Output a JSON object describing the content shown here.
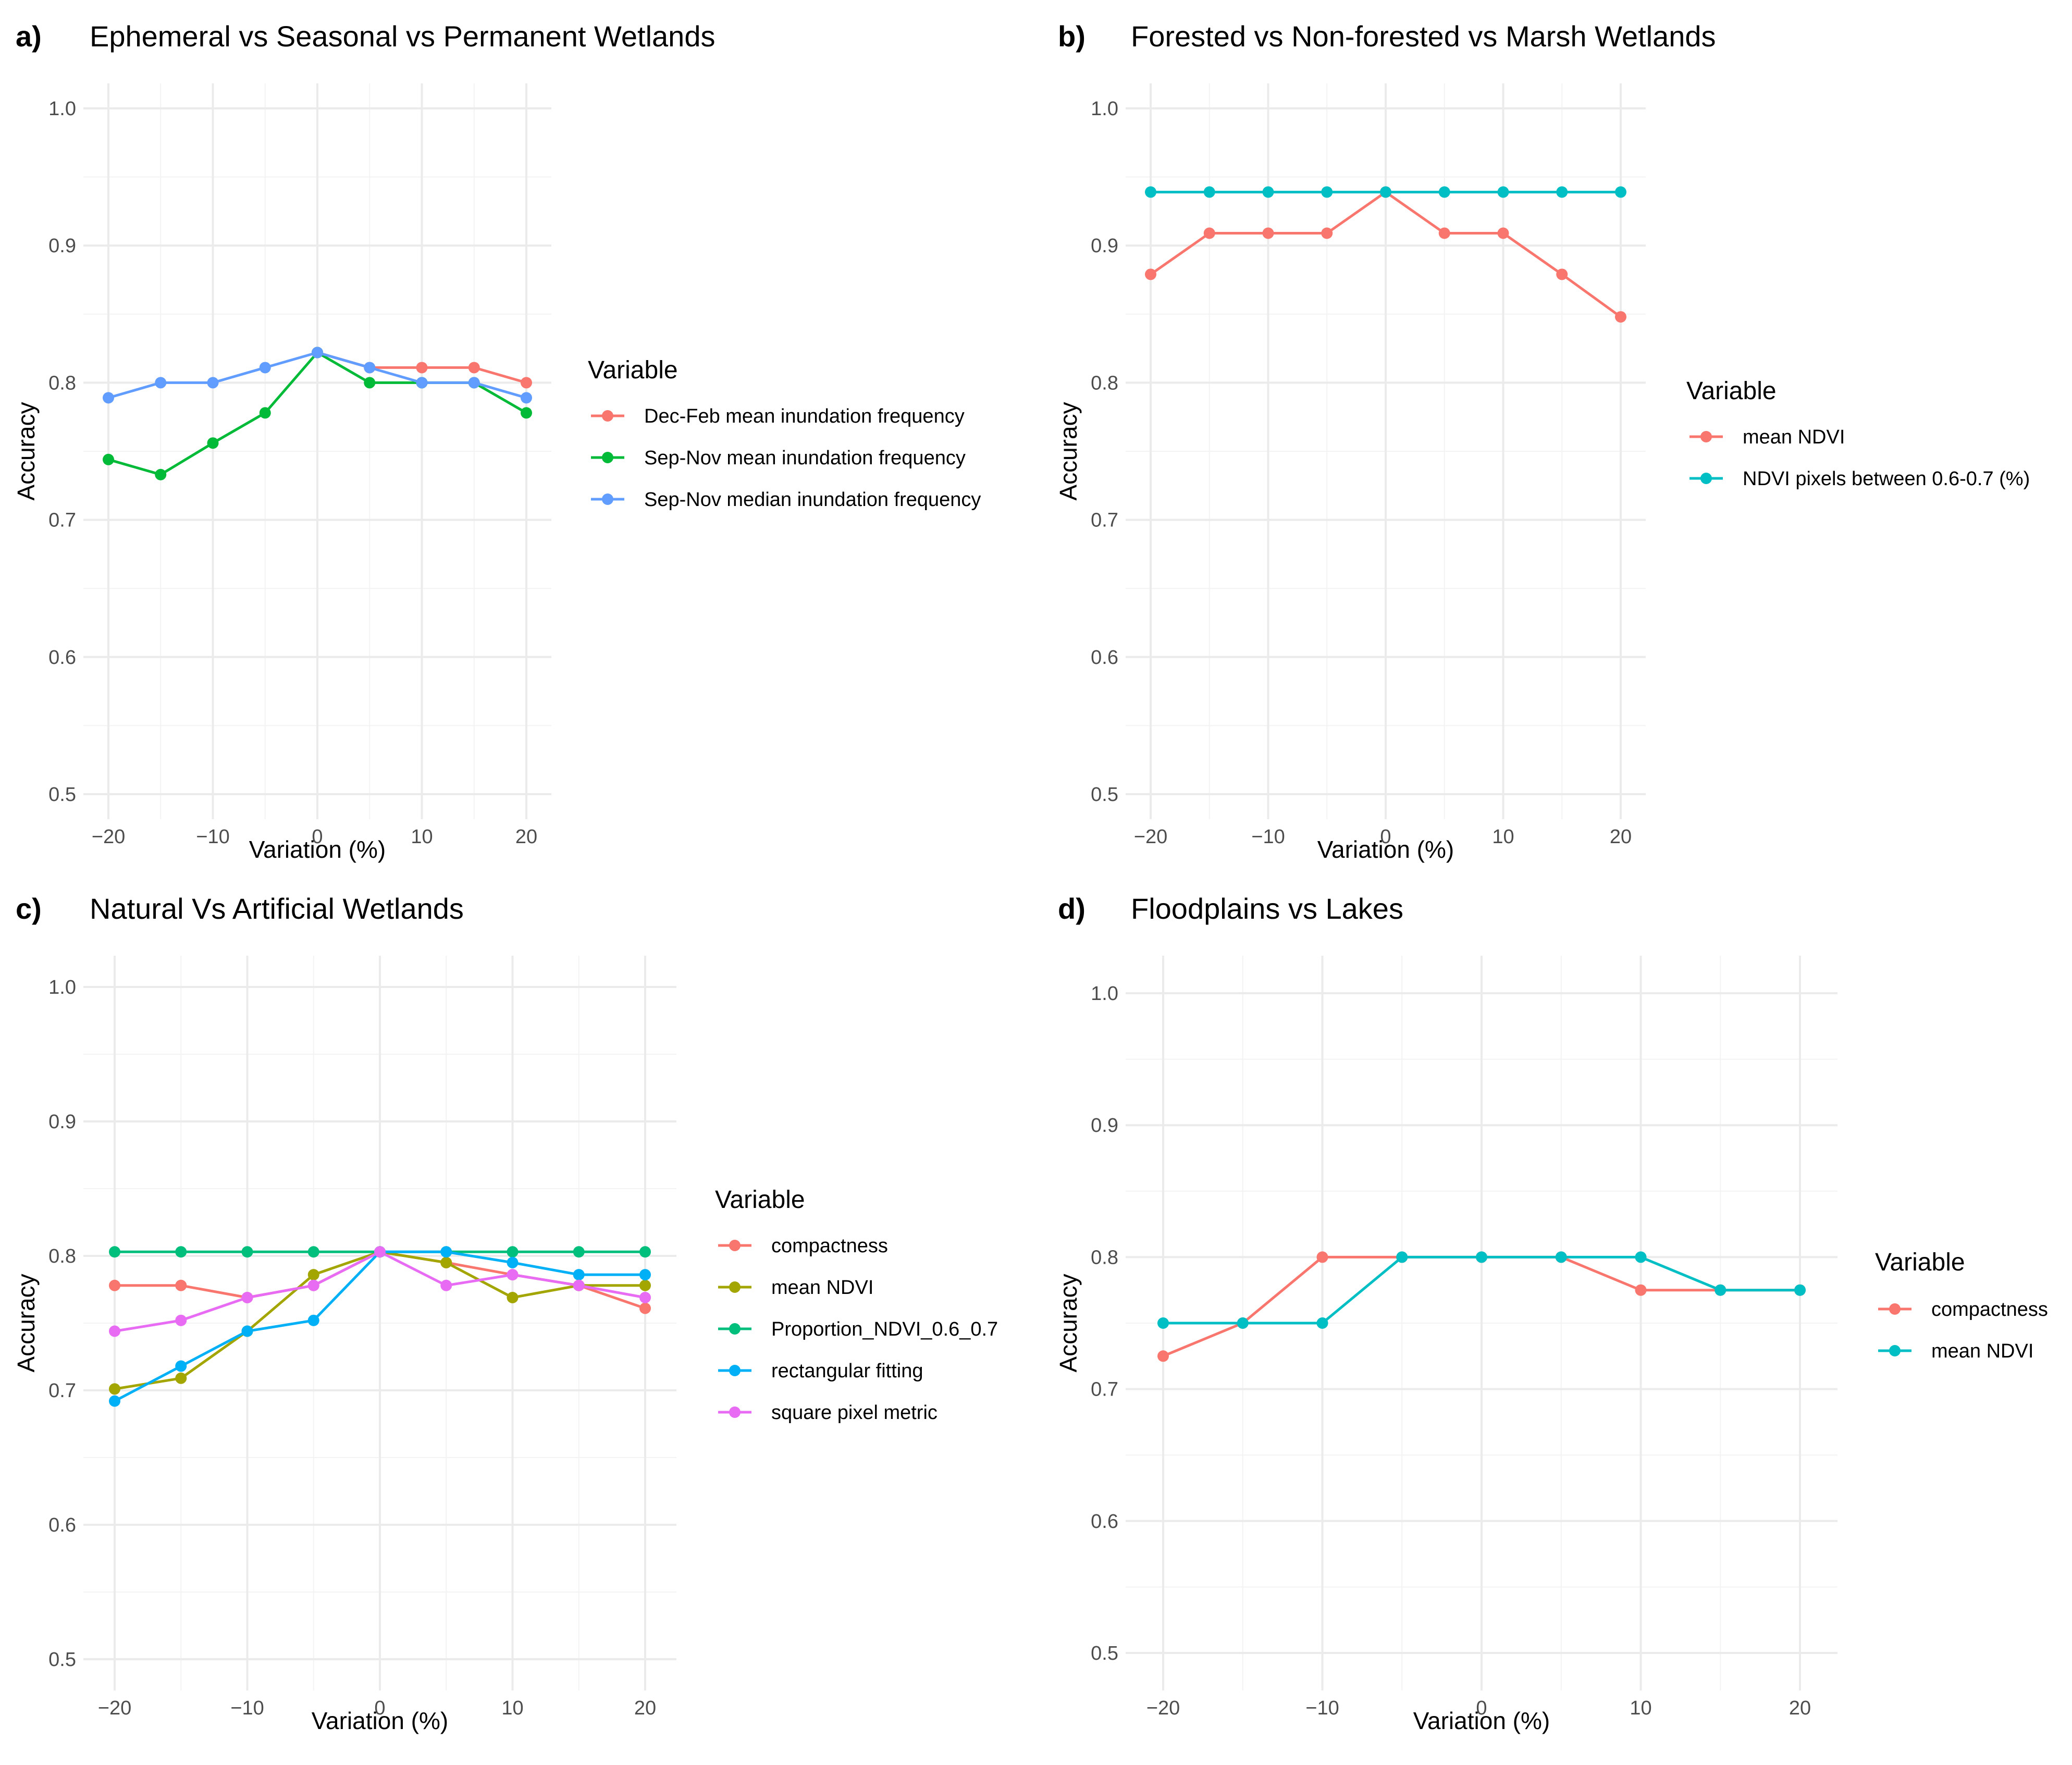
{
  "chart_data": [
    {
      "type": "line",
      "panel_label": "a)",
      "title": "Ephemeral vs Seasonal vs Permanent Wetlands",
      "xlabel": "Variation (%)",
      "ylabel": "Accuracy",
      "xlim": [
        -20,
        20
      ],
      "ylim": [
        0.5,
        1.0
      ],
      "x_ticks": [
        -20,
        -10,
        0,
        10,
        20
      ],
      "x_tick_labels": [
        "−20",
        "−10",
        "0",
        "10",
        "20"
      ],
      "y_ticks": [
        0.5,
        0.6,
        0.7,
        0.8,
        0.9,
        1.0
      ],
      "y_tick_labels": [
        "0.5",
        "0.6",
        "0.7",
        "0.8",
        "0.9",
        "1.0"
      ],
      "grid": true,
      "legend_title": "Variable",
      "legend_position": "right",
      "x": [
        -20,
        -15,
        -10,
        -5,
        0,
        5,
        10,
        15,
        20
      ],
      "series": [
        {
          "name": "Dec-Feb mean inundation frequency",
          "color": "#F8766D",
          "x": [
            0,
            5,
            10,
            15,
            20
          ],
          "values": [
            0.822,
            0.811,
            0.811,
            0.811,
            0.8
          ]
        },
        {
          "name": "Sep-Nov mean inundation frequency",
          "color": "#00BA38",
          "x": [
            -20,
            -15,
            -10,
            -5,
            0,
            5,
            10,
            15,
            20
          ],
          "values": [
            0.744,
            0.733,
            0.756,
            0.778,
            0.822,
            0.8,
            0.8,
            0.8,
            0.778
          ]
        },
        {
          "name": "Sep-Nov median inundation frequency",
          "color": "#619CFF",
          "x": [
            -20,
            -15,
            -10,
            -5,
            0,
            5,
            10,
            15,
            20
          ],
          "values": [
            0.789,
            0.8,
            0.8,
            0.811,
            0.822,
            0.811,
            0.8,
            0.8,
            0.789
          ]
        }
      ]
    },
    {
      "type": "line",
      "panel_label": "b)",
      "title": "Forested vs Non-forested vs Marsh Wetlands",
      "xlabel": "Variation (%)",
      "ylabel": "Accuracy",
      "xlim": [
        -20,
        20
      ],
      "ylim": [
        0.5,
        1.0
      ],
      "x_ticks": [
        -20,
        -10,
        0,
        10,
        20
      ],
      "x_tick_labels": [
        "−20",
        "−10",
        "0",
        "10",
        "20"
      ],
      "y_ticks": [
        0.5,
        0.6,
        0.7,
        0.8,
        0.9,
        1.0
      ],
      "y_tick_labels": [
        "0.5",
        "0.6",
        "0.7",
        "0.8",
        "0.9",
        "1.0"
      ],
      "grid": true,
      "legend_title": "Variable",
      "legend_position": "right",
      "x": [
        -20,
        -15,
        -10,
        -5,
        0,
        5,
        10,
        15,
        20
      ],
      "series": [
        {
          "name": "mean NDVI",
          "color": "#F8766D",
          "x": [
            -20,
            -15,
            -10,
            -5,
            0,
            5,
            10,
            15,
            20
          ],
          "values": [
            0.879,
            0.909,
            0.909,
            0.909,
            0.939,
            0.909,
            0.909,
            0.879,
            0.848
          ]
        },
        {
          "name": "NDVI pixels between 0.6-0.7 (%)",
          "color": "#00BFC4",
          "x": [
            -20,
            -15,
            -10,
            -5,
            0,
            5,
            10,
            15,
            20
          ],
          "values": [
            0.939,
            0.939,
            0.939,
            0.939,
            0.939,
            0.939,
            0.939,
            0.939,
            0.939
          ]
        }
      ]
    },
    {
      "type": "line",
      "panel_label": "c)",
      "title": "Natural Vs Artificial Wetlands",
      "xlabel": "Variation (%)",
      "ylabel": "Accuracy",
      "xlim": [
        -20,
        20
      ],
      "ylim": [
        0.5,
        1.0
      ],
      "x_ticks": [
        -20,
        -10,
        0,
        10,
        20
      ],
      "x_tick_labels": [
        "−20",
        "−10",
        "0",
        "10",
        "20"
      ],
      "y_ticks": [
        0.5,
        0.6,
        0.7,
        0.8,
        0.9,
        1.0
      ],
      "y_tick_labels": [
        "0.5",
        "0.6",
        "0.7",
        "0.8",
        "0.9",
        "1.0"
      ],
      "grid": true,
      "legend_title": "Variable",
      "legend_position": "right",
      "x": [
        -20,
        -15,
        -10,
        -5,
        0,
        5,
        10,
        15,
        20
      ],
      "series": [
        {
          "name": "compactness",
          "color": "#F8766D",
          "x": [
            -20,
            -15,
            -10,
            -5,
            0,
            5,
            10,
            15,
            20
          ],
          "values": [
            0.778,
            0.778,
            0.769,
            0.778,
            0.803,
            0.795,
            0.786,
            0.778,
            0.761
          ]
        },
        {
          "name": "mean NDVI",
          "color": "#A3A500",
          "x": [
            -20,
            -15,
            -10,
            -5,
            0,
            5,
            10,
            15,
            20
          ],
          "values": [
            0.701,
            0.709,
            0.744,
            0.786,
            0.803,
            0.795,
            0.769,
            0.778,
            0.778
          ]
        },
        {
          "name": "Proportion_NDVI_0.6_0.7",
          "color": "#00BF7D",
          "x": [
            -20,
            -15,
            -10,
            -5,
            0,
            5,
            10,
            15,
            20
          ],
          "values": [
            0.803,
            0.803,
            0.803,
            0.803,
            0.803,
            0.803,
            0.803,
            0.803,
            0.803
          ]
        },
        {
          "name": "rectangular fitting",
          "color": "#00B0F6",
          "x": [
            -20,
            -15,
            -10,
            -5,
            0,
            5,
            10,
            15,
            20
          ],
          "values": [
            0.692,
            0.718,
            0.744,
            0.752,
            0.803,
            0.803,
            0.795,
            0.786,
            0.786
          ]
        },
        {
          "name": "square pixel metric",
          "color": "#E76BF3",
          "x": [
            -20,
            -15,
            -10,
            -5,
            0,
            5,
            10,
            15,
            20
          ],
          "values": [
            0.744,
            0.752,
            0.769,
            0.778,
            0.803,
            0.778,
            0.786,
            0.778,
            0.769
          ]
        }
      ]
    },
    {
      "type": "line",
      "panel_label": "d)",
      "title": "Floodplains vs Lakes",
      "xlabel": "Variation (%)",
      "ylabel": "Accuracy",
      "xlim": [
        -20,
        20
      ],
      "ylim": [
        0.5,
        1.0
      ],
      "x_ticks": [
        -20,
        -10,
        0,
        10,
        20
      ],
      "x_tick_labels": [
        "−20",
        "−10",
        "0",
        "10",
        "20"
      ],
      "y_ticks": [
        0.5,
        0.6,
        0.7,
        0.8,
        0.9,
        1.0
      ],
      "y_tick_labels": [
        "0.5",
        "0.6",
        "0.7",
        "0.8",
        "0.9",
        "1.0"
      ],
      "grid": true,
      "legend_title": "Variable",
      "legend_position": "right",
      "x": [
        -20,
        -15,
        -10,
        -5,
        0,
        5,
        10,
        15,
        20
      ],
      "series": [
        {
          "name": "compactness",
          "color": "#F8766D",
          "x": [
            -20,
            -15,
            -10,
            -5,
            0,
            5,
            10,
            15,
            20
          ],
          "values": [
            0.725,
            0.75,
            0.8,
            0.8,
            0.8,
            0.8,
            0.775,
            0.775,
            0.775
          ]
        },
        {
          "name": "mean NDVI",
          "color": "#00BFC4",
          "x": [
            -20,
            -15,
            -10,
            -5,
            0,
            5,
            10,
            15,
            20
          ],
          "values": [
            0.75,
            0.75,
            0.75,
            0.8,
            0.8,
            0.8,
            0.8,
            0.775,
            0.775
          ]
        }
      ]
    }
  ]
}
